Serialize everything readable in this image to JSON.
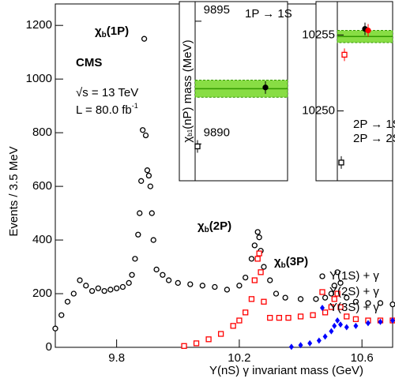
{
  "chart_data": [
    {
      "type": "scatter",
      "y_label": "Events / 3.5 MeV",
      "x_label": "Υ(nS) γ  invariant mass (GeV)",
      "experiment": "CMS",
      "sqrt_s": "√s = 13 TeV",
      "lumi": {
        "text": "L = 80.0 fb",
        "sup": "-1"
      },
      "annotations": [
        {
          "text": "χ",
          "sub": "b",
          "rest": "(1P)"
        },
        {
          "text": "χ",
          "sub": "b",
          "rest": "(2P)"
        },
        {
          "text": "χ",
          "sub": "b",
          "rest": "(3P)"
        }
      ],
      "xlim": [
        9.6,
        10.7
      ],
      "xticks": [
        9.8,
        10.2,
        10.6
      ],
      "ylim": [
        0,
        1280
      ],
      "yticks": [
        0,
        200,
        400,
        600,
        800,
        1000,
        1200
      ],
      "legend": "right",
      "series": [
        {
          "name": "Υ(1S) + γ",
          "color": "#000000",
          "marker": "open-circle",
          "x": [
            9.6,
            9.62,
            9.64,
            9.66,
            9.68,
            9.7,
            9.72,
            9.74,
            9.76,
            9.78,
            9.8,
            9.82,
            9.84,
            9.85,
            9.86,
            9.87,
            9.875,
            9.88,
            9.885,
            9.89,
            9.895,
            9.9,
            9.905,
            9.91,
            9.915,
            9.92,
            9.93,
            9.95,
            9.97,
            10.0,
            10.04,
            10.08,
            10.12,
            10.16,
            10.2,
            10.22,
            10.24,
            10.25,
            10.26,
            10.265,
            10.27,
            10.28,
            10.3,
            10.32,
            10.35,
            10.4,
            10.45,
            10.48,
            10.5,
            10.51,
            10.52,
            10.53,
            10.55,
            10.58,
            10.62,
            10.66,
            10.7
          ],
          "values": [
            70,
            120,
            170,
            200,
            250,
            230,
            210,
            220,
            210,
            215,
            220,
            225,
            240,
            270,
            330,
            420,
            500,
            620,
            810,
            1150,
            790,
            660,
            640,
            600,
            500,
            400,
            290,
            270,
            250,
            240,
            235,
            230,
            225,
            215,
            230,
            260,
            330,
            380,
            430,
            410,
            360,
            300,
            250,
            200,
            185,
            180,
            180,
            185,
            200,
            230,
            280,
            240,
            185,
            170,
            165,
            165,
            160
          ]
        },
        {
          "name": "Υ(2S) + γ",
          "color": "#ff0000",
          "marker": "open-square",
          "x": [
            10.02,
            10.06,
            10.1,
            10.14,
            10.18,
            10.2,
            10.22,
            10.24,
            10.25,
            10.26,
            10.265,
            10.27,
            10.28,
            10.3,
            10.33,
            10.36,
            10.4,
            10.44,
            10.48,
            10.5,
            10.51,
            10.52,
            10.53,
            10.55,
            10.58,
            10.62,
            10.66,
            10.7
          ],
          "values": [
            5,
            15,
            30,
            50,
            80,
            100,
            130,
            180,
            250,
            330,
            350,
            280,
            170,
            110,
            110,
            110,
            115,
            120,
            130,
            150,
            180,
            200,
            150,
            115,
            105,
            100,
            100,
            100
          ]
        },
        {
          "name": "Υ(3S) + γ",
          "color": "#0000ff",
          "marker": "filled-diamond",
          "x": [
            10.37,
            10.4,
            10.43,
            10.46,
            10.48,
            10.5,
            10.51,
            10.52,
            10.53,
            10.55,
            10.58,
            10.62,
            10.66,
            10.7
          ],
          "values": [
            2,
            8,
            15,
            25,
            40,
            60,
            80,
            100,
            85,
            75,
            80,
            90,
            95,
            100
          ]
        }
      ]
    },
    {
      "type": "inset",
      "y_label": {
        "text": "χ",
        "sub": "b1",
        "rest": "(nP) mass (MeV)"
      },
      "ylim": [
        9888.5,
        9895.8
      ],
      "yticks": [
        9890,
        9895
      ],
      "band": {
        "value": 9892.25,
        "half_width": 0.35,
        "color": "#88dd44"
      },
      "series": [
        {
          "name": "1P → 1S",
          "color": "#000000",
          "markers": [
            "open-square",
            "filled-circle"
          ],
          "values": [
            9889.9,
            9892.3
          ]
        }
      ]
    },
    {
      "type": "inset",
      "ylim": [
        10245.4,
        10257.2
      ],
      "yticks": [
        10250,
        10255
      ],
      "band": {
        "value": 10254.9,
        "half_width": 0.4,
        "color": "#88dd44"
      },
      "series": [
        {
          "name": "2P → 1S",
          "color": "#000000",
          "markers": [
            "open-square",
            "filled-circle"
          ],
          "values": [
            10246.6,
            10255.4
          ]
        },
        {
          "name": "2P → 2S",
          "color": "#ff0000",
          "markers": [
            "open-square",
            "filled-circle"
          ],
          "values": [
            10253.7,
            10255.3
          ]
        }
      ]
    }
  ]
}
